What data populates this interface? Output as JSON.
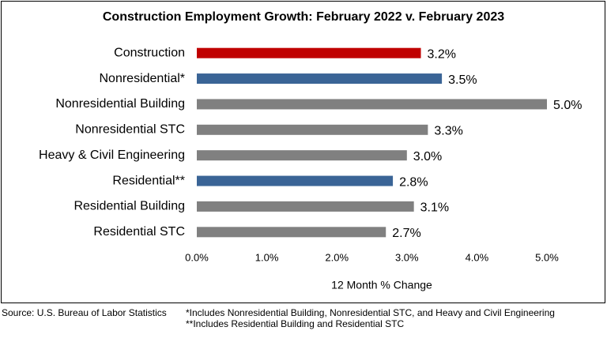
{
  "chart_data": {
    "type": "hbar",
    "title": "Construction Employment Growth: February 2022 v. February 2023",
    "categories": [
      "Construction",
      "Nonresidential*",
      "Nonresidential Building",
      "Nonresidential STC",
      "Heavy & Civil Engineering",
      "Residential**",
      "Residential Building",
      "Residential STC"
    ],
    "values": [
      3.2,
      3.5,
      5.0,
      3.3,
      3.0,
      2.8,
      3.1,
      2.7
    ],
    "value_labels": [
      "3.2%",
      "3.5%",
      "5.0%",
      "3.3%",
      "3.0%",
      "2.8%",
      "3.1%",
      "2.7%"
    ],
    "colors": [
      "#c00000",
      "#3a6496",
      "#808080",
      "#808080",
      "#808080",
      "#3a6496",
      "#808080",
      "#808080"
    ],
    "xlim": [
      0,
      5
    ],
    "xticks": [
      {
        "value": 0,
        "label": "0.0%"
      },
      {
        "value": 1,
        "label": "1.0%"
      },
      {
        "value": 2,
        "label": "2.0%"
      },
      {
        "value": 3,
        "label": "3.0%"
      },
      {
        "value": 4,
        "label": "4.0%"
      },
      {
        "value": 5,
        "label": "5.0%"
      }
    ],
    "x_label": "12 Month % Change",
    "source": "Source:  U.S. Bureau of Labor Statistics",
    "notes": [
      "*Includes Nonresidential Building, Nonresidential STC, and Heavy and Civil Engineering",
      "**Includes Residential Building and Residential STC"
    ]
  }
}
